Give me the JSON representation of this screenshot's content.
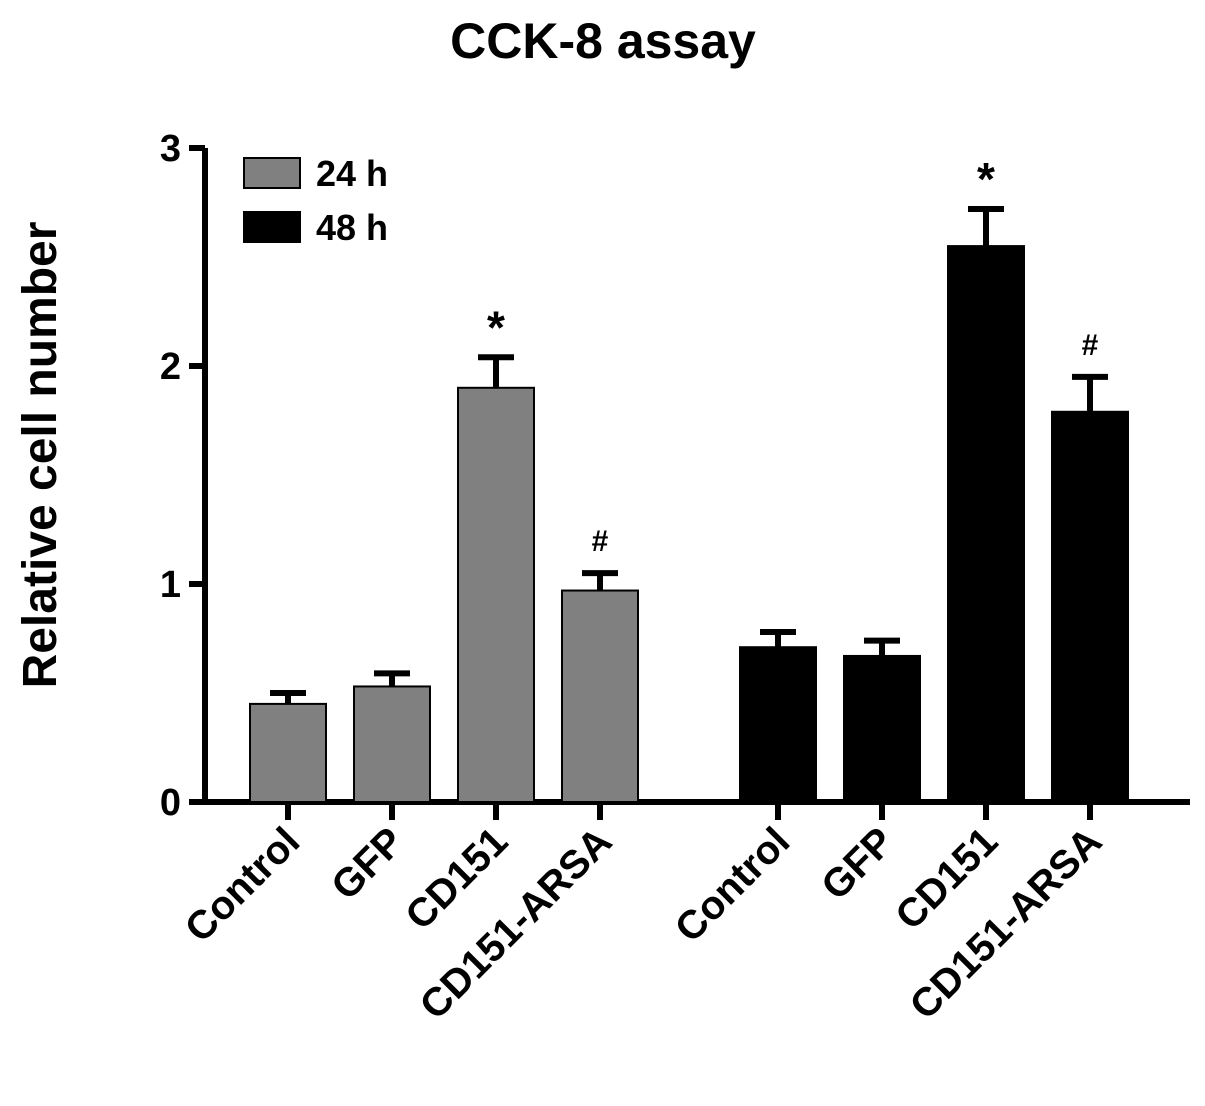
{
  "chart_data": {
    "type": "bar",
    "title": "CCK-8 assay",
    "xlabel": "",
    "ylabel": "Relative cell number",
    "ylim": [
      0,
      3
    ],
    "yticks": [
      "0",
      "1",
      "2",
      "3"
    ],
    "legend_placement": "top-left",
    "grid": false,
    "groups": [
      {
        "series": "24 h",
        "color": "#808080",
        "categories": [
          "Control",
          "GFP",
          "CD151",
          "CD151-ARSA"
        ],
        "values": [
          0.45,
          0.53,
          1.9,
          0.97
        ],
        "errors": [
          0.05,
          0.06,
          0.14,
          0.08
        ],
        "annotations": [
          "",
          "",
          "*",
          "#"
        ]
      },
      {
        "series": "48 h",
        "color": "#000000",
        "categories": [
          "Control",
          "GFP",
          "CD151",
          "CD151-ARSA"
        ],
        "values": [
          0.71,
          0.67,
          2.55,
          1.79
        ],
        "errors": [
          0.07,
          0.07,
          0.17,
          0.16
        ],
        "annotations": [
          "",
          "",
          "*",
          "#"
        ]
      }
    ],
    "legend": [
      {
        "label": "24 h",
        "color": "#808080"
      },
      {
        "label": "48 h",
        "color": "#000000"
      }
    ]
  }
}
